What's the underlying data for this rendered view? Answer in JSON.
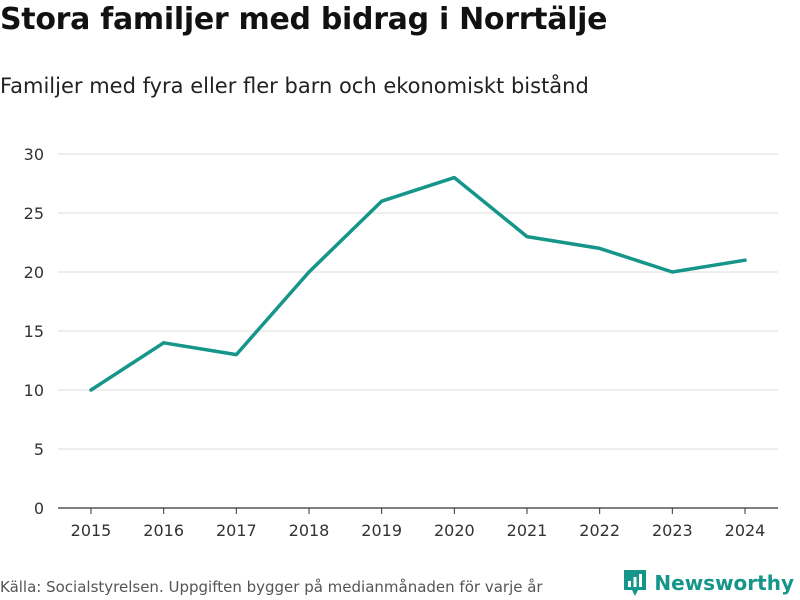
{
  "chart_data": {
    "type": "line",
    "title": "Stora familjer med bidrag i Norrtälje",
    "subtitle": "Familjer med fyra eller fler barn och ekonomiskt bistånd",
    "x": [
      "2015",
      "2016",
      "2017",
      "2018",
      "2019",
      "2020",
      "2021",
      "2022",
      "2023",
      "2024"
    ],
    "series": [
      {
        "name": "Familjer",
        "values": [
          10,
          14,
          13,
          20,
          26,
          28,
          23,
          22,
          20,
          21
        ]
      }
    ],
    "yticks": [
      "0",
      "5",
      "10",
      "15",
      "20",
      "25",
      "30"
    ],
    "ylim": [
      0,
      30
    ],
    "grid": true,
    "xlabel": "",
    "ylabel": "",
    "line_color": "#16958a"
  },
  "footer": {
    "source": "Källa: Socialstyrelsen. Uppgiften bygger på medianmånaden för varje år",
    "brand": "Newsworthy",
    "brand_icon": "bar-chart-logo-icon"
  }
}
